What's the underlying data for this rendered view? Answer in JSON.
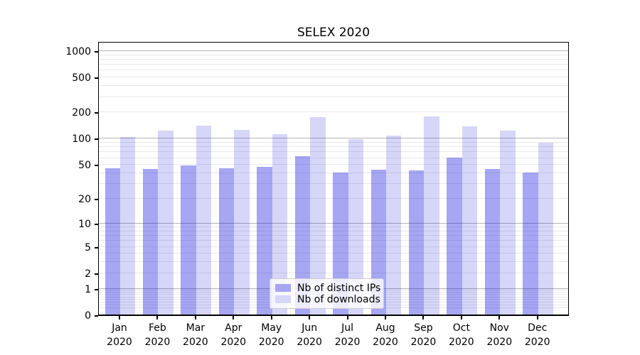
{
  "chart_data": {
    "type": "bar",
    "title": "SELEX 2020",
    "categories": [
      "Jan",
      "Feb",
      "Mar",
      "Apr",
      "May",
      "Jun",
      "Jul",
      "Aug",
      "Sep",
      "Oct",
      "Nov",
      "Dec"
    ],
    "x_year_label": "2020",
    "series": [
      {
        "name": "Nb of distinct IPs",
        "values": [
          45,
          44,
          48,
          45,
          47,
          62,
          40,
          43,
          42,
          60,
          44,
          40
        ],
        "swatch_color": "#a6a6f3",
        "bar_color": "rgba(0, 0, 220, 0.35)"
      },
      {
        "name": "Nb of downloads",
        "values": [
          102,
          122,
          139,
          124,
          110,
          174,
          98,
          107,
          178,
          135,
          122,
          89
        ],
        "swatch_color": "#d6d6f9",
        "bar_color": "rgba(0, 0, 220, 0.16)"
      }
    ],
    "yticks": [
      0,
      1,
      2,
      5,
      10,
      20,
      50,
      100,
      200,
      500,
      1000
    ],
    "scale": "log1p",
    "ylim": [
      0,
      1290
    ],
    "xlabel": "",
    "ylabel": "",
    "grid": {
      "major_color": "#b5b5b5",
      "minor_color": "#e9e9e9",
      "major_at_powers_of_ten": true
    },
    "legend_position": "lower-center"
  }
}
